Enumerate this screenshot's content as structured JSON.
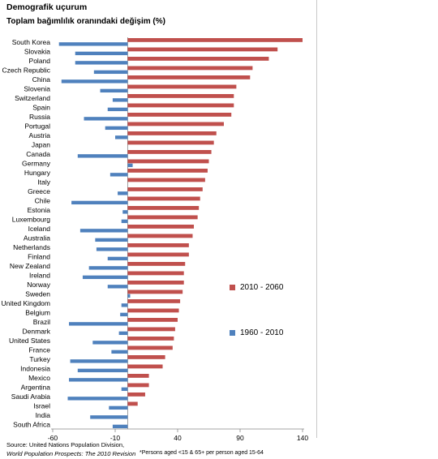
{
  "chart_data": {
    "type": "bar",
    "orientation": "horizontal",
    "title": "Demografik uçurum",
    "subtitle": "Toplam bağımlılık oranındaki değişim (%)",
    "categories": [
      "South Korea",
      "Slovakia",
      "Poland",
      "Czech Republic",
      "China",
      "Slovenia",
      "Switzerland",
      "Spain",
      "Russia",
      "Portugal",
      "Austria",
      "Japan",
      "Canada",
      "Germany",
      "Hungary",
      "Italy",
      "Greece",
      "Chile",
      "Estonia",
      "Luxembourg",
      "Iceland",
      "Australia",
      "Netherlands",
      "Finland",
      "New Zealand",
      "Ireland",
      "Norway",
      "Sweden",
      "United Kingdom",
      "Belgium",
      "Brazil",
      "Denmark",
      "United States",
      "France",
      "Turkey",
      "Indonesia",
      "Mexico",
      "Argentina",
      "Saudi Arabia",
      "Israel",
      "India",
      "South Africa"
    ],
    "series": [
      {
        "name": "2010 - 2060",
        "color": "#c0504d",
        "values": [
          140,
          120,
          113,
          100,
          98,
          87,
          85,
          85,
          83,
          77,
          71,
          69,
          67,
          65,
          64,
          62,
          60,
          58,
          57,
          56,
          53,
          52,
          49,
          49,
          46,
          45,
          45,
          44,
          42,
          41,
          40,
          38,
          37,
          36,
          30,
          28,
          17,
          17,
          14,
          8,
          0,
          0
        ]
      },
      {
        "name": "1960 - 2010",
        "color": "#4f81bd",
        "values": [
          -55,
          -42,
          -42,
          -27,
          -53,
          -22,
          -12,
          -16,
          -35,
          -18,
          -10,
          0,
          -40,
          4,
          -14,
          0,
          -8,
          -45,
          -4,
          -5,
          -38,
          -26,
          -25,
          -16,
          -31,
          -36,
          -16,
          2,
          -5,
          -6,
          -47,
          -7,
          -28,
          -13,
          -46,
          -40,
          -47,
          -5,
          -48,
          -15,
          -30,
          -12
        ]
      }
    ],
    "xlim": [
      -60,
      140
    ],
    "xticks": [
      -60,
      -10,
      40,
      90,
      140
    ],
    "legend_position": "right",
    "source_line1": "Source: United Nations Population Division,",
    "source_line2": "World Population Prospects: The 2010 Revision",
    "footnote": "*Persons aged <15 & 65+ per person aged 15-64"
  }
}
